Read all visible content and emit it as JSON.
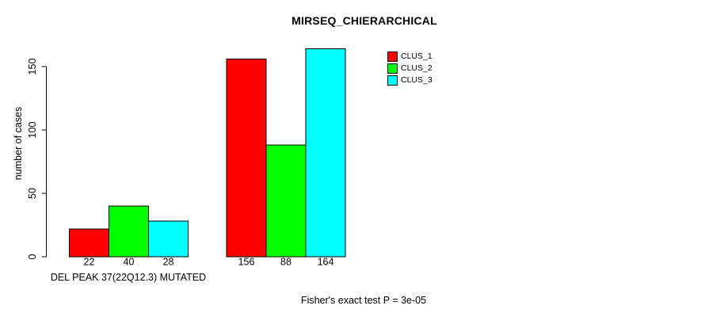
{
  "window": {
    "background": "#ffffff"
  },
  "chart_data": {
    "type": "bar",
    "title": "MIRSEQ_CHIERARCHICAL",
    "ylabel": "number of cases",
    "xlabel": "DEL PEAK 37(22Q12.3) MUTATED",
    "footnote": "Fisher's exact test P = 3e-05",
    "yticks": [
      0,
      50,
      100,
      150
    ],
    "ylim": [
      0,
      164
    ],
    "grid": false,
    "legend_position": "inside-top-right",
    "categories": [
      "DEL PEAK 37(22Q12.3) MUTATED",
      ""
    ],
    "series": [
      {
        "name": "CLUS_1",
        "color": "#ff0000",
        "values": [
          22,
          156
        ]
      },
      {
        "name": "CLUS_2",
        "color": "#00ff00",
        "values": [
          40,
          88
        ]
      },
      {
        "name": "CLUS_3",
        "color": "#00ffff",
        "values": [
          28,
          164
        ]
      }
    ]
  }
}
